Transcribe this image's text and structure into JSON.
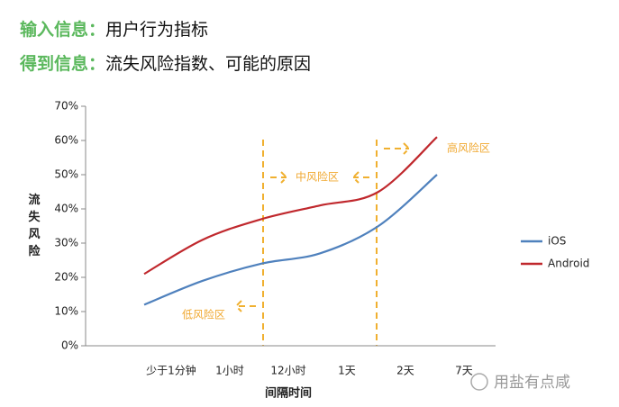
{
  "header": {
    "line1_key": "输入信息：",
    "line1_value": "用户行为指标",
    "line2_key": "得到信息：",
    "line2_value": "流失风险指数、可能的原因"
  },
  "chart_data": {
    "type": "line",
    "ylabel": "流失风险",
    "xlabel": "间隔时间",
    "categories": [
      "少于1分钟",
      "1小时",
      "12小时",
      "1天",
      "2天",
      "7天"
    ],
    "series": [
      {
        "name": "iOS",
        "color": "#4f81bd",
        "values": [
          12,
          19,
          24,
          27,
          35,
          50
        ]
      },
      {
        "name": "Android",
        "color": "#c0282d",
        "values": [
          21,
          31,
          37,
          41,
          45,
          61
        ]
      }
    ],
    "ylim": [
      0,
      70
    ],
    "yticks": [
      {
        "value": 0,
        "label": "0%"
      },
      {
        "value": 10,
        "label": "10%"
      },
      {
        "value": 20,
        "label": "20%"
      },
      {
        "value": 30,
        "label": "30%"
      },
      {
        "value": 40,
        "label": "40%"
      },
      {
        "value": 50,
        "label": "50%"
      },
      {
        "value": 60,
        "label": "60%"
      },
      {
        "value": 70,
        "label": "70%"
      }
    ],
    "annotations": [
      "低风险区",
      "中风险区",
      "高风险区"
    ],
    "legend": "right"
  },
  "watermark": "用盐有点咸"
}
